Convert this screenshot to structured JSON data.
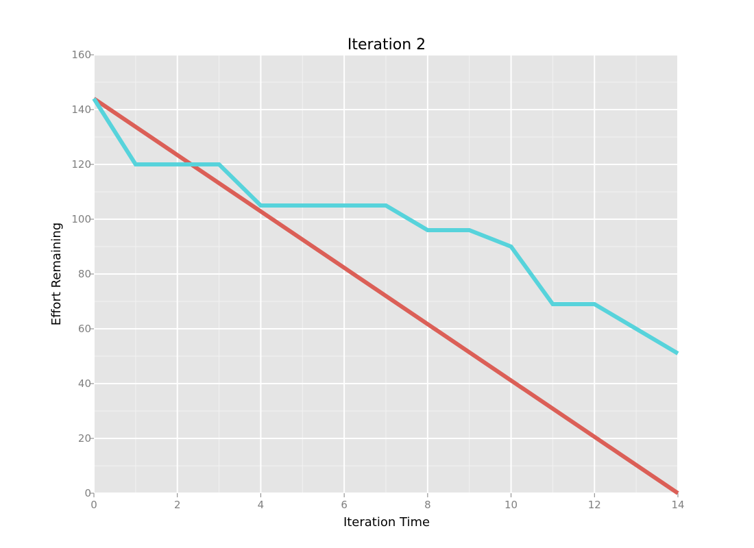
{
  "chart_data": {
    "type": "line",
    "title": "Iteration 2",
    "xlabel": "Iteration Time",
    "ylabel": "Effort Remaining",
    "xlim": [
      0,
      14
    ],
    "ylim": [
      0,
      160
    ],
    "x_ticks": [
      0,
      2,
      4,
      6,
      8,
      10,
      12,
      14
    ],
    "y_ticks": [
      0,
      20,
      40,
      60,
      80,
      100,
      120,
      140,
      160
    ],
    "grid": true,
    "legend": "none",
    "series": [
      {
        "color": "#db5f57",
        "x": [
          0,
          14
        ],
        "values": [
          144,
          0
        ]
      },
      {
        "color": "#57d3db",
        "x": [
          0,
          1,
          2,
          3,
          4,
          5,
          6,
          7,
          8,
          9,
          10,
          11,
          12,
          13,
          14
        ],
        "values": [
          144,
          120,
          120,
          120,
          105,
          105,
          105,
          105,
          96,
          96,
          90,
          69,
          69,
          60,
          51
        ]
      }
    ]
  }
}
